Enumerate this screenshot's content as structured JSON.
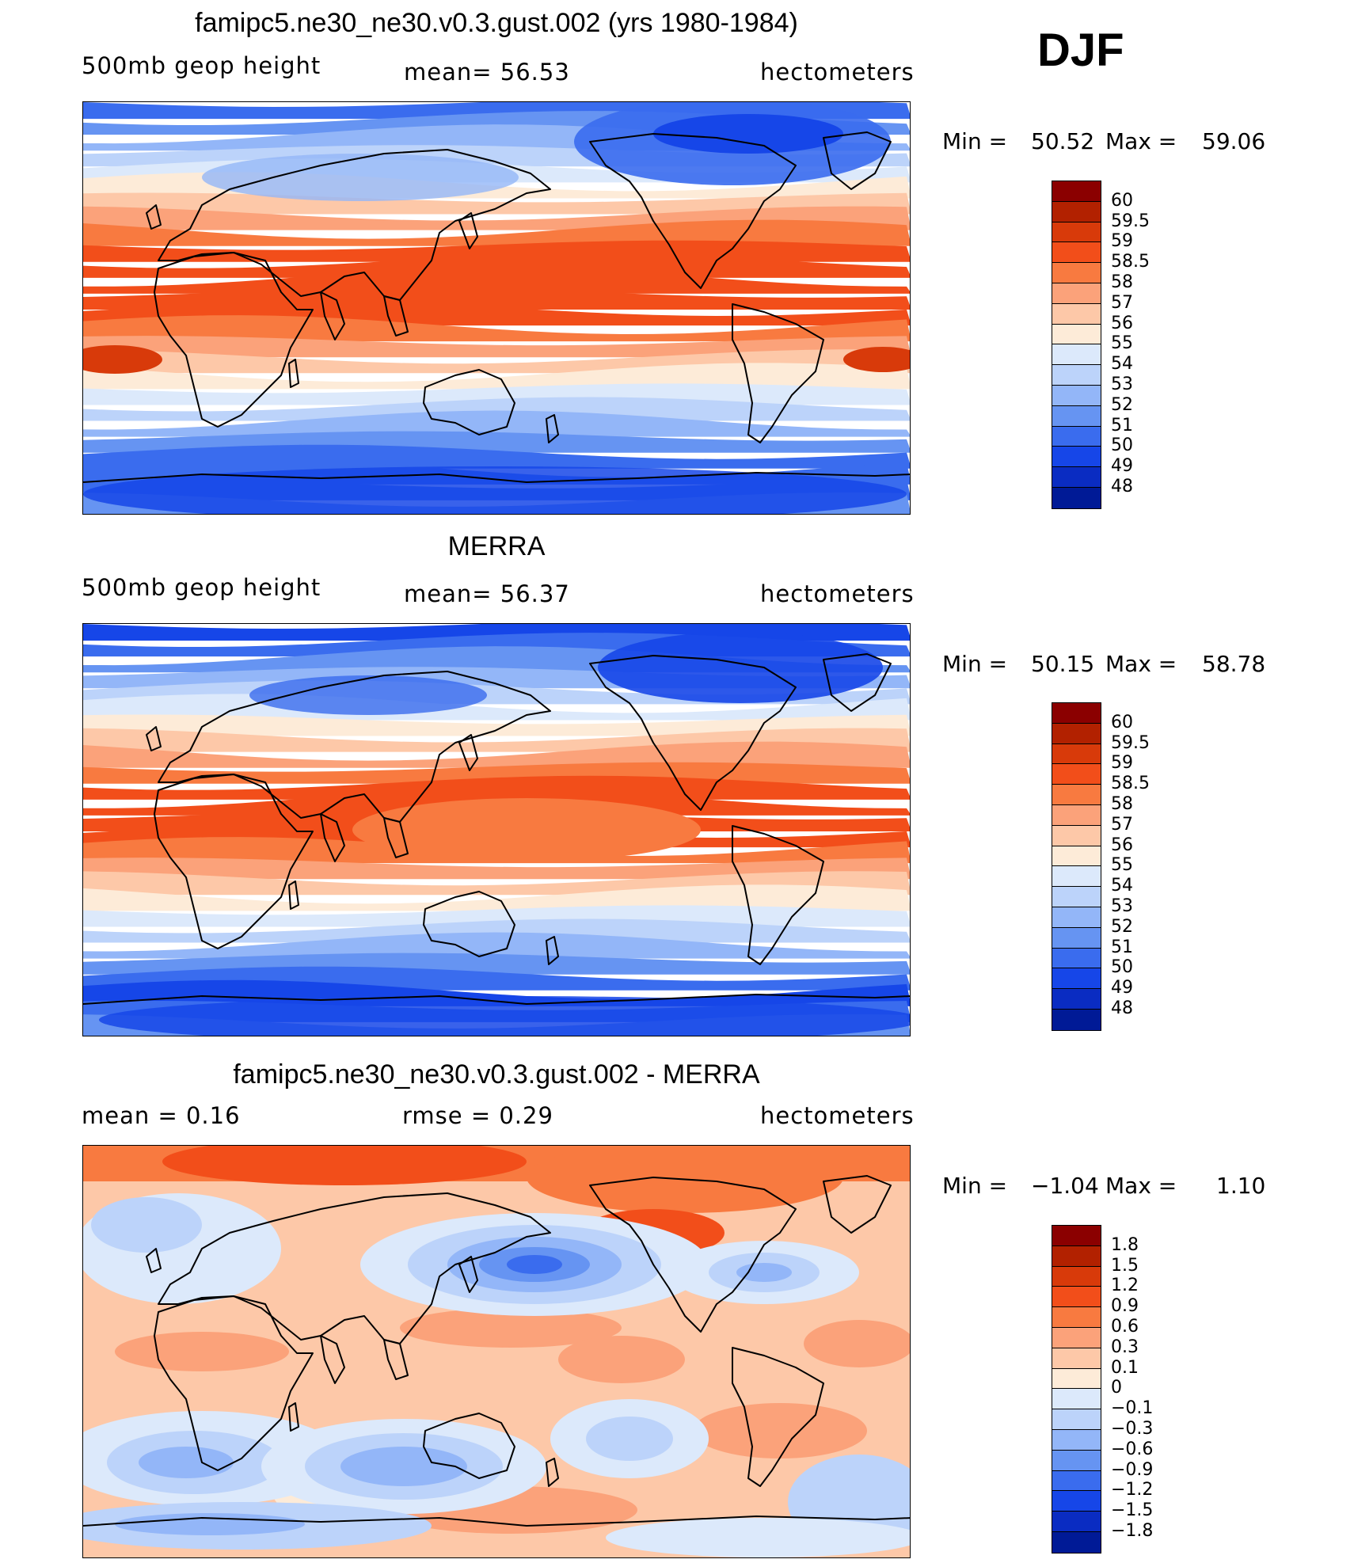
{
  "season": "DJF",
  "panels": [
    {
      "title": "famipc5.ne30_ne30.v0.3.gust.002 (yrs 1980-1984)",
      "left_label": "500mb  geop  height",
      "center_label": "mean=   56.53",
      "right_label": "hectometers",
      "min_label": "Min  =",
      "min_value": "50.52",
      "max_label": "Max  =",
      "max_value": "59.06"
    },
    {
      "title": "MERRA",
      "left_label": "500mb  geop  height",
      "center_label": "mean=   56.37",
      "right_label": "hectometers",
      "min_label": "Min  =",
      "min_value": "50.15",
      "max_label": "Max  =",
      "max_value": "58.78"
    },
    {
      "title": "famipc5.ne30_ne30.v0.3.gust.002 - MERRA",
      "left_label": "mean  =      0.16",
      "center_label": "rmse  =      0.29",
      "right_label": "hectometers",
      "min_label": "Min  =",
      "min_value": "−1.04",
      "max_label": "Max  =",
      "max_value": "1.10"
    }
  ],
  "colorbars": {
    "height": {
      "labels": [
        "60",
        "59.5",
        "59",
        "58.5",
        "58",
        "57",
        "56",
        "55",
        "54",
        "53",
        "52",
        "51",
        "50",
        "49",
        "48"
      ],
      "colors": [
        "#8b0000",
        "#b22100",
        "#d83a0a",
        "#f24e1a",
        "#f87a40",
        "#fba27a",
        "#fdc8a8",
        "#fdebd8",
        "#dce9fb",
        "#bcd3fa",
        "#93b6f8",
        "#6694f2",
        "#3a6cee",
        "#1646e8",
        "#0a2cc2",
        "#001a96"
      ]
    },
    "diff": {
      "labels": [
        "1.8",
        "1.5",
        "1.2",
        "0.9",
        "0.6",
        "0.3",
        "0.1",
        "0",
        "−0.1",
        "−0.3",
        "−0.6",
        "−0.9",
        "−1.2",
        "−1.5",
        "−1.8"
      ],
      "colors": [
        "#8b0000",
        "#b22100",
        "#d83a0a",
        "#f24e1a",
        "#f87a40",
        "#fba27a",
        "#fdc8a8",
        "#fdebd8",
        "#dce9fb",
        "#bcd3fa",
        "#93b6f8",
        "#6694f2",
        "#3a6cee",
        "#1646e8",
        "#0a2cc2",
        "#001a96"
      ]
    }
  },
  "map_fields": {
    "height_model": {
      "bands_top_to_bottom": [
        "#3a6cee",
        "#6694f2",
        "#93b6f8",
        "#bcd3fa",
        "#dce9fb",
        "#fdebd8",
        "#fdc8a8",
        "#fba27a",
        "#f87a40",
        "#f24e1a",
        "#f24e1a",
        "#f24e1a",
        "#f24e1a",
        "#f24e1a",
        "#f87a40",
        "#fba27a",
        "#fdc8a8",
        "#fdebd8",
        "#dce9fb",
        "#bcd3fa",
        "#93b6f8",
        "#6694f2",
        "#3a6cee",
        "#3a6cee",
        "#3a6cee",
        "#6694f2"
      ]
    },
    "height_merra": {
      "bands_top_to_bottom": [
        "#1646e8",
        "#3a6cee",
        "#6694f2",
        "#93b6f8",
        "#bcd3fa",
        "#dce9fb",
        "#fdebd8",
        "#fdc8a8",
        "#fba27a",
        "#f87a40",
        "#f24e1a",
        "#f24e1a",
        "#f24e1a",
        "#f24e1a",
        "#f87a40",
        "#fba27a",
        "#fdc8a8",
        "#fdebd8",
        "#dce9fb",
        "#bcd3fa",
        "#93b6f8",
        "#6694f2",
        "#3a6cee",
        "#1646e8",
        "#3a6cee",
        "#6694f2"
      ]
    },
    "difference": {
      "background": "#fdc8a8"
    }
  }
}
